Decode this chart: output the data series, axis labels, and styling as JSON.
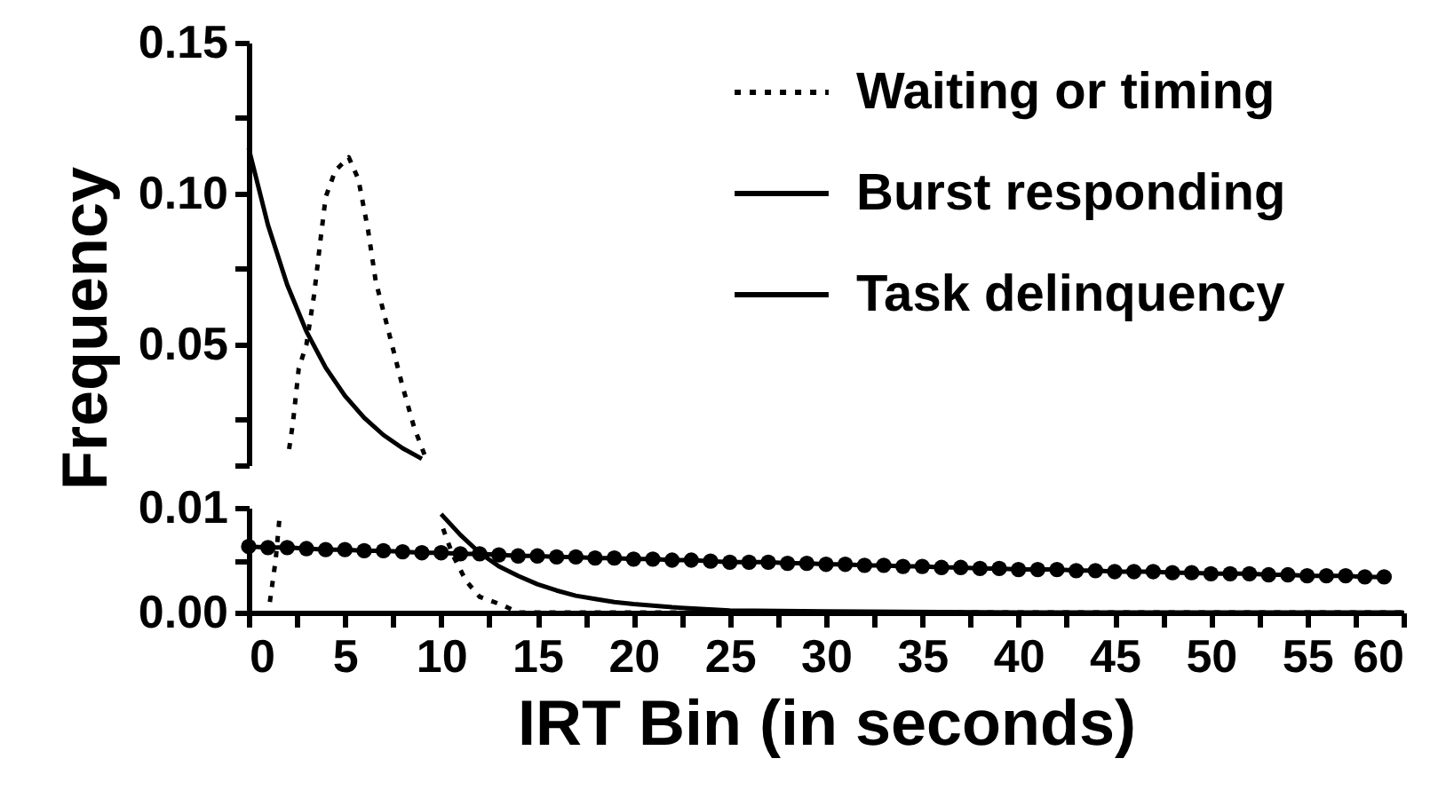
{
  "chart_data": [
    {
      "type": "line",
      "ylabel": "Frequency",
      "xlim": [
        0,
        60
      ],
      "ylim": [
        0.01,
        0.15
      ],
      "tick_labels": "y",
      "yticks": [
        {
          "value": 0.01,
          "label": null
        },
        {
          "value": 0.025,
          "label": null
        },
        {
          "value": 0.05,
          "label": "0.05"
        },
        {
          "value": 0.075,
          "label": null
        },
        {
          "value": 0.1,
          "label": "0.10"
        },
        {
          "value": 0.125,
          "label": null
        },
        0.15
      ],
      "series": [
        {
          "color": "#000000",
          "line_style": "dotted",
          "x": [
            2.1,
            2.3,
            2.6,
            3.0,
            3.4,
            3.7,
            4.0,
            4.5,
            5.2,
            5.7,
            6.2,
            6.6,
            7.3,
            8.0,
            8.6,
            9.2
          ],
          "values": [
            0.0153,
            0.024,
            0.042,
            0.05,
            0.0665,
            0.083,
            0.0988,
            0.1076,
            0.112,
            0.1047,
            0.088,
            0.071,
            0.0535,
            0.036,
            0.0224,
            0.0124
          ]
        },
        {
          "color": "#000000",
          "line_style": "solid",
          "x": [
            0,
            1,
            2,
            3,
            4,
            5,
            6,
            7,
            8,
            9
          ],
          "values": [
            0.115,
            0.0896,
            0.0698,
            0.0543,
            0.0423,
            0.033,
            0.0257,
            0.02,
            0.0156,
            0.0121
          ]
        }
      ]
    },
    {
      "type": "line",
      "xlabel": "IRT Bin (in seconds)",
      "xlim": [
        0,
        60
      ],
      "ylim": [
        0,
        0.01
      ],
      "legend": "top right",
      "xticks": [
        0,
        {
          "value": 2.5,
          "label": null
        },
        5,
        {
          "value": 7.5,
          "label": null
        },
        10,
        {
          "value": 12.5,
          "label": null
        },
        15,
        {
          "value": 17.5,
          "label": null
        },
        20,
        {
          "value": 22.5,
          "label": null
        },
        25,
        {
          "value": 27.5,
          "label": null
        },
        30,
        {
          "value": 32.5,
          "label": null
        },
        35,
        {
          "value": 37.5,
          "label": null
        },
        40,
        {
          "value": 42.5,
          "label": null
        },
        45,
        {
          "value": 47.5,
          "label": null
        },
        50,
        {
          "value": 52.5,
          "label": null
        },
        55,
        {
          "value": 57.5,
          "label": null
        },
        60
      ],
      "yticks": [
        {
          "value": 0,
          "label": "0.00"
        },
        {
          "value": 0.005,
          "label": null
        },
        0.01
      ],
      "series": [
        {
          "name": "Waiting or timing",
          "color": "#000000",
          "line_style": "dotted",
          "x": [
            1.1,
            1.4,
            1.6,
            5,
            10.1,
            10.6,
            11.3,
            12,
            13.2,
            14,
            20,
            30,
            40,
            50,
            60
          ],
          "values": [
            0.001,
            0.005,
            0.009,
            null,
            0.008,
            0.0055,
            0.003,
            0.0015,
            0.0007,
            0,
            0,
            0,
            0,
            0,
            0
          ]
        },
        {
          "name": "Burst responding",
          "color": "#000000",
          "line_style": "solid",
          "x": [
            10,
            11,
            12,
            13,
            14,
            15,
            16,
            17,
            18,
            19,
            20,
            22,
            25,
            30,
            40,
            50,
            60
          ],
          "values": [
            0.0094,
            0.0074,
            0.0057,
            0.0044,
            0.0035,
            0.0027,
            0.0021,
            0.0016,
            0.0013,
            0.001,
            0.0008,
            0.0005,
            0.0002,
            0.0001,
            0,
            0,
            0
          ]
        },
        {
          "name": "Task delinquency",
          "color": "#000000",
          "line_style": "solid",
          "marker": "circle",
          "x": [
            0,
            1,
            2,
            3,
            4,
            5,
            6,
            7,
            8,
            9,
            10,
            11,
            12,
            13,
            14,
            15,
            16,
            17,
            18,
            19,
            20,
            21,
            22,
            23,
            24,
            25,
            26,
            27,
            28,
            29,
            30,
            31,
            32,
            33,
            34,
            35,
            36,
            37,
            38,
            39,
            40,
            41,
            42,
            43,
            44,
            45,
            46,
            47,
            48,
            49,
            50,
            51,
            52,
            53,
            54,
            55,
            56,
            57,
            58,
            59
          ],
          "values": [
            0.0063,
            0.0062,
            0.0062,
            0.0061,
            0.006,
            0.006,
            0.0059,
            0.0059,
            0.0058,
            0.0057,
            0.0057,
            0.0056,
            0.0056,
            0.0055,
            0.0054,
            0.0054,
            0.0053,
            0.0053,
            0.0052,
            0.0052,
            0.0051,
            0.0051,
            0.005,
            0.005,
            0.0049,
            0.0048,
            0.0048,
            0.0048,
            0.0047,
            0.0047,
            0.0046,
            0.0046,
            0.0045,
            0.0045,
            0.0044,
            0.0044,
            0.0043,
            0.0043,
            0.0042,
            0.0042,
            0.0041,
            0.0041,
            0.0041,
            0.004,
            0.004,
            0.0039,
            0.0039,
            0.0039,
            0.0038,
            0.0038,
            0.0037,
            0.0037,
            0.0037,
            0.0036,
            0.0036,
            0.0035,
            0.0035,
            0.0035,
            0.0034,
            0.0034
          ]
        }
      ]
    }
  ]
}
